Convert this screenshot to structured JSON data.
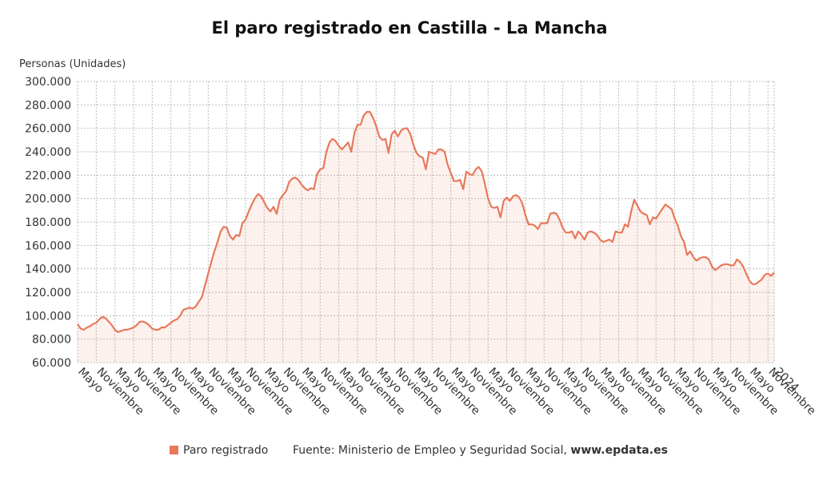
{
  "chart_data": {
    "type": "line",
    "title": "El paro registrado en Castilla - La Mancha",
    "y_axis_label": "Personas (Unidades)",
    "source_text": "Fuente: Ministerio de Empleo y Seguridad Social,",
    "source_link": "www.epdata.es",
    "grid": true,
    "ylim": [
      60000,
      300000
    ],
    "yticks": [
      {
        "value": 60000,
        "label": "60.000"
      },
      {
        "value": 80000,
        "label": "80.000"
      },
      {
        "value": 100000,
        "label": "100.000"
      },
      {
        "value": 120000,
        "label": "120.000"
      },
      {
        "value": 140000,
        "label": "140.000"
      },
      {
        "value": 160000,
        "label": "160.000"
      },
      {
        "value": 180000,
        "label": "180.000"
      },
      {
        "value": 200000,
        "label": "200.000"
      },
      {
        "value": 220000,
        "label": "220.000"
      },
      {
        "value": 240000,
        "label": "240.000"
      },
      {
        "value": 260000,
        "label": "260.000"
      },
      {
        "value": 280000,
        "label": "280.000"
      },
      {
        "value": 300000,
        "label": "300.000"
      }
    ],
    "categories": [
      "Mayo",
      null,
      null,
      null,
      null,
      null,
      "Noviembre",
      null,
      null,
      null,
      null,
      null,
      "Mayo",
      null,
      null,
      null,
      null,
      null,
      "Noviembre",
      null,
      null,
      null,
      null,
      null,
      "Mayo",
      null,
      null,
      null,
      null,
      null,
      "Noviembre",
      null,
      null,
      null,
      null,
      null,
      "Mayo",
      null,
      null,
      null,
      null,
      null,
      "Noviembre",
      null,
      null,
      null,
      null,
      null,
      "Mayo",
      null,
      null,
      null,
      null,
      null,
      "Noviembre",
      null,
      null,
      null,
      null,
      null,
      "Mayo",
      null,
      null,
      null,
      null,
      null,
      "Noviembre",
      null,
      null,
      null,
      null,
      null,
      "Mayo",
      null,
      null,
      null,
      null,
      null,
      "Noviembre",
      null,
      null,
      null,
      null,
      null,
      "Mayo",
      null,
      null,
      null,
      null,
      null,
      "Noviembre",
      null,
      null,
      null,
      null,
      null,
      "Mayo",
      null,
      null,
      null,
      null,
      null,
      "Noviembre",
      null,
      null,
      null,
      null,
      null,
      "Mayo",
      null,
      null,
      null,
      null,
      null,
      "Noviembre",
      null,
      null,
      null,
      null,
      null,
      "Mayo",
      null,
      null,
      null,
      null,
      null,
      "Noviembre",
      null,
      null,
      null,
      null,
      null,
      "Mayo",
      null,
      null,
      null,
      null,
      null,
      "Noviembre",
      null,
      null,
      null,
      null,
      null,
      "Mayo",
      null,
      null,
      null,
      null,
      null,
      "Noviembre",
      null,
      null,
      null,
      null,
      null,
      "Mayo",
      null,
      null,
      null,
      null,
      null,
      "Noviembre",
      null,
      null,
      null,
      null,
      null,
      "Mayo",
      null,
      null,
      null,
      null,
      null,
      "Noviembre",
      null,
      null,
      null,
      null,
      null,
      "Mayo",
      null,
      null,
      null,
      null,
      null,
      "Noviembre",
      null,
      null,
      null,
      null,
      null,
      "Mayo",
      null,
      null,
      null,
      null,
      null,
      "Noviembre",
      null,
      null,
      null,
      null,
      null,
      "Mayo",
      null,
      null,
      null,
      null,
      null,
      "Noviembre",
      null,
      null,
      null,
      null,
      null,
      "Mayo",
      null,
      null,
      null,
      null,
      null,
      "Noviembre",
      null,
      "2024"
    ],
    "series": [
      {
        "name": "Paro registrado",
        "color": "#e8795b",
        "values": [
          93000,
          89000,
          88000,
          90000,
          91000,
          93000,
          94000,
          97000,
          99000,
          98000,
          95000,
          92000,
          88000,
          86000,
          87000,
          88000,
          88000,
          89000,
          90000,
          92000,
          95000,
          95000,
          94000,
          92000,
          89000,
          88000,
          88000,
          90000,
          90000,
          92000,
          94000,
          96000,
          97000,
          100000,
          105000,
          106000,
          107000,
          106000,
          108000,
          112000,
          116000,
          126000,
          136000,
          146000,
          155000,
          163000,
          172000,
          176000,
          175000,
          168000,
          165000,
          169000,
          168000,
          179000,
          182000,
          189000,
          195000,
          200000,
          204000,
          202000,
          197000,
          192000,
          189000,
          193000,
          187000,
          199000,
          203000,
          206000,
          214000,
          217000,
          218000,
          216000,
          212000,
          209000,
          207000,
          209000,
          208000,
          221000,
          225000,
          226000,
          240000,
          248000,
          251000,
          249000,
          245000,
          242000,
          245000,
          248000,
          240000,
          256000,
          263000,
          263000,
          271000,
          274000,
          274000,
          269000,
          262000,
          253000,
          250000,
          251000,
          239000,
          255000,
          258000,
          253000,
          258000,
          260000,
          260000,
          255000,
          246000,
          239000,
          236000,
          235000,
          225000,
          240000,
          239000,
          238000,
          242000,
          242000,
          240000,
          229000,
          222000,
          215000,
          215000,
          216000,
          208000,
          223000,
          221000,
          220000,
          225000,
          227000,
          223000,
          212000,
          200000,
          193000,
          192000,
          193000,
          184000,
          198000,
          201000,
          198000,
          202000,
          203000,
          201000,
          196000,
          186000,
          178000,
          178000,
          177000,
          174000,
          179000,
          179000,
          179000,
          187000,
          188000,
          187000,
          182000,
          175000,
          171000,
          171000,
          172000,
          166000,
          172000,
          169000,
          165000,
          171000,
          172000,
          171000,
          169000,
          165000,
          163000,
          164000,
          165000,
          163000,
          172000,
          171000,
          171000,
          178000,
          176000,
          189000,
          199000,
          194000,
          189000,
          187000,
          186000,
          178000,
          184000,
          183000,
          187000,
          191000,
          195000,
          193000,
          191000,
          183000,
          177000,
          168000,
          163000,
          152000,
          155000,
          150000,
          147000,
          149000,
          150000,
          150000,
          148000,
          142000,
          139000,
          141000,
          143000,
          144000,
          144000,
          143000,
          143000,
          148000,
          146000,
          142000,
          136000,
          130000,
          127000,
          127000,
          129000,
          131000,
          135000,
          136000,
          134000,
          137000
        ]
      }
    ]
  }
}
